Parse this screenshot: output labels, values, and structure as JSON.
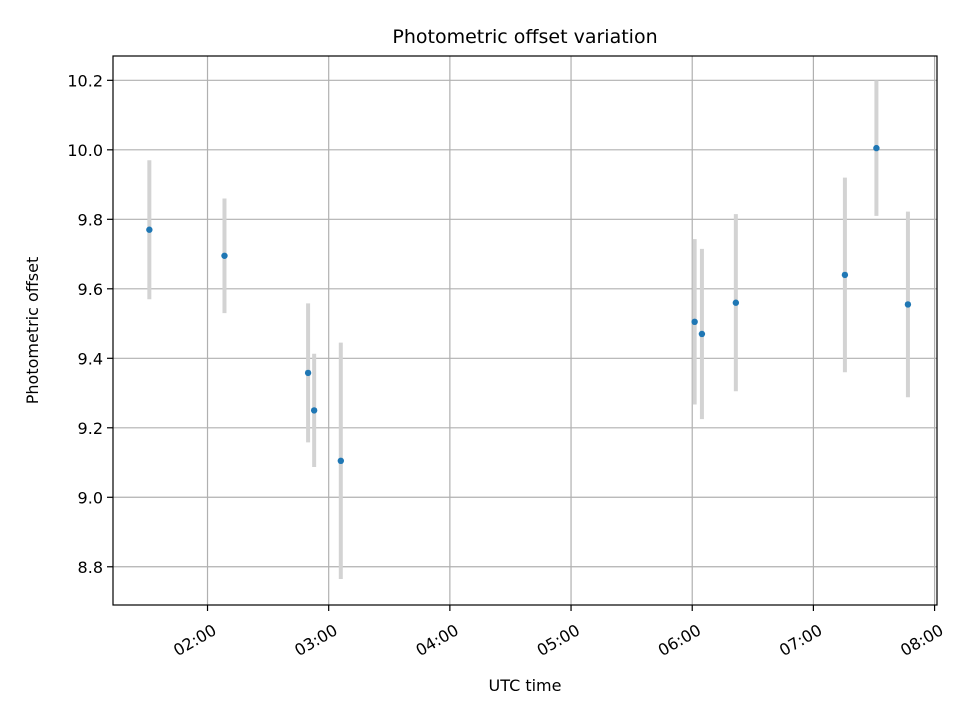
{
  "chart_data": {
    "type": "scatter",
    "title": "Photometric offset variation",
    "xlabel": "UTC time",
    "ylabel": "Photometric offset",
    "x_unit": "hours",
    "xlim": [
      1.22,
      8.02
    ],
    "ylim": [
      8.69,
      10.27
    ],
    "grid": true,
    "legend": "none",
    "x_ticks": [
      {
        "value": 2,
        "label": "02:00"
      },
      {
        "value": 3,
        "label": "03:00"
      },
      {
        "value": 4,
        "label": "04:00"
      },
      {
        "value": 5,
        "label": "05:00"
      },
      {
        "value": 6,
        "label": "06:00"
      },
      {
        "value": 7,
        "label": "07:00"
      },
      {
        "value": 8,
        "label": "08:00"
      }
    ],
    "y_ticks": [
      {
        "value": 8.8,
        "label": "8.8"
      },
      {
        "value": 9.0,
        "label": "9.0"
      },
      {
        "value": 9.2,
        "label": "9.2"
      },
      {
        "value": 9.4,
        "label": "9.4"
      },
      {
        "value": 9.6,
        "label": "9.6"
      },
      {
        "value": 9.8,
        "label": "9.8"
      },
      {
        "value": 10.0,
        "label": "10.0"
      },
      {
        "value": 10.2,
        "label": "10.2"
      }
    ],
    "series": [
      {
        "name": "offset",
        "color": "#1f77b4",
        "error_color": "#d3d3d3",
        "points": [
          {
            "x": 1.52,
            "y": 9.77,
            "err": 0.2
          },
          {
            "x": 2.14,
            "y": 9.695,
            "err": 0.165
          },
          {
            "x": 2.83,
            "y": 9.358,
            "err": 0.2
          },
          {
            "x": 2.88,
            "y": 9.25,
            "err": 0.163
          },
          {
            "x": 3.1,
            "y": 9.105,
            "err": 0.34
          },
          {
            "x": 6.02,
            "y": 9.505,
            "err": 0.238
          },
          {
            "x": 6.08,
            "y": 9.47,
            "err": 0.245
          },
          {
            "x": 6.36,
            "y": 9.56,
            "err": 0.255
          },
          {
            "x": 7.26,
            "y": 9.64,
            "err": 0.28
          },
          {
            "x": 7.52,
            "y": 10.005,
            "err": 0.195
          },
          {
            "x": 7.78,
            "y": 9.555,
            "err": 0.267
          }
        ]
      }
    ]
  }
}
